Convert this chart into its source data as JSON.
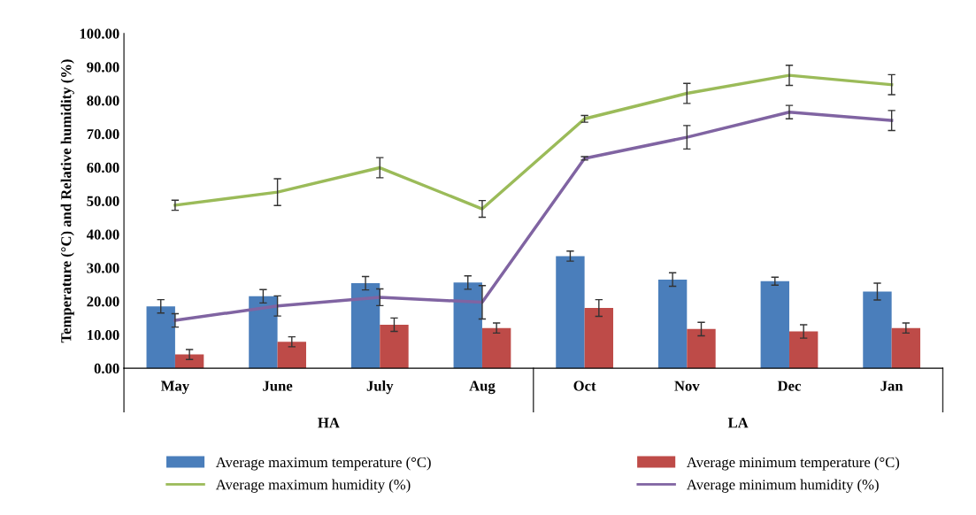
{
  "chart_data": {
    "type": "bar",
    "ylabel": "Temperature (°C) and Relative humidity (%)",
    "categories": [
      "May",
      "June",
      "July",
      "Aug",
      "Oct",
      "Nov",
      "Dec",
      "Jan"
    ],
    "annotations": [
      "HA",
      "LA"
    ],
    "series": [
      {
        "name": "Average maximum temperature (°C)",
        "color": "#4a7ebb",
        "values": [
          18.5,
          21.5,
          25.4,
          25.6,
          33.5,
          26.5,
          26.0,
          22.9
        ],
        "errors": [
          2,
          2,
          2,
          2,
          1.5,
          2,
          1.2,
          2.5
        ]
      },
      {
        "name": "Average minimum temperature (°C)",
        "color": "#be4b48",
        "values": [
          4.1,
          7.9,
          13.0,
          12.0,
          18.0,
          11.7,
          11.0,
          12.0
        ],
        "errors": [
          1.5,
          1.5,
          2,
          1.5,
          2.5,
          2,
          2,
          1.5
        ]
      },
      {
        "name": "Average maximum humidity (%)",
        "type": "line",
        "color": "#9bbb59",
        "values": [
          48.7,
          52.6,
          59.9,
          47.6,
          74.5,
          82.1,
          87.5,
          84.7
        ],
        "errors": [
          1.5,
          4,
          3,
          2.5,
          1,
          3,
          3,
          3
        ]
      },
      {
        "name": "Average minimum humidity (%)",
        "type": "line",
        "color": "#8064a2",
        "values": [
          14.3,
          18.6,
          21.2,
          19.7,
          62.7,
          69.0,
          76.5,
          74.0
        ],
        "errors": [
          2,
          3,
          2.5,
          5,
          0.5,
          3.5,
          2,
          3
        ]
      }
    ],
    "ylim": [
      0,
      100
    ],
    "yticks": [
      {
        "value": 0,
        "label": "0.00"
      },
      {
        "value": 10,
        "label": "10.00"
      },
      {
        "value": 20,
        "label": "20.00"
      },
      {
        "value": 30,
        "label": "30.00"
      },
      {
        "value": 40,
        "label": "40.00"
      },
      {
        "value": 50,
        "label": "50.00"
      },
      {
        "value": 60,
        "label": "60.00"
      },
      {
        "value": 70,
        "label": "70.00"
      },
      {
        "value": 80,
        "label": "80.00"
      },
      {
        "value": 90,
        "label": "90.00"
      },
      {
        "value": 100,
        "label": "100.00"
      }
    ],
    "grid": false,
    "legend": "bottom",
    "marker": "none",
    "line_style": "solid"
  }
}
